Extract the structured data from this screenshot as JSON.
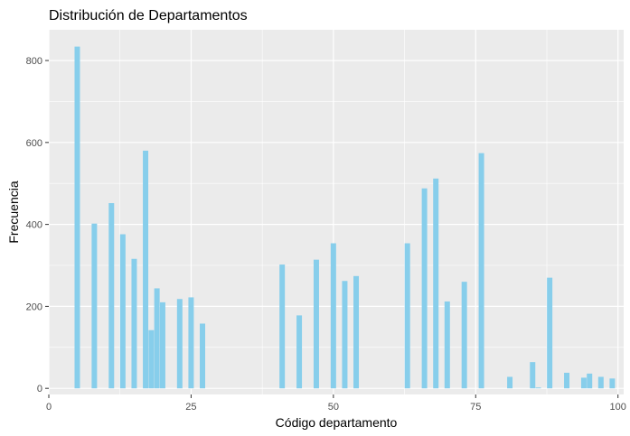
{
  "chart_data": {
    "type": "bar",
    "title": "Distribución de Departamentos",
    "xlabel": "Código departamento",
    "ylabel": "Frecuencia",
    "xlim": [
      0,
      101
    ],
    "ylim": [
      -15,
      875
    ],
    "xticks": [
      0,
      25,
      50,
      75,
      100
    ],
    "yticks": [
      0,
      200,
      400,
      600,
      800
    ],
    "grid": true,
    "legend": "none",
    "bar_color": "#87CEEB",
    "panel_color": "#EBEBEB",
    "points": [
      {
        "x": 5,
        "y": 834
      },
      {
        "x": 8,
        "y": 402
      },
      {
        "x": 11,
        "y": 452
      },
      {
        "x": 13,
        "y": 376
      },
      {
        "x": 15,
        "y": 316
      },
      {
        "x": 17,
        "y": 580
      },
      {
        "x": 18,
        "y": 142
      },
      {
        "x": 19,
        "y": 244
      },
      {
        "x": 20,
        "y": 210
      },
      {
        "x": 23,
        "y": 218
      },
      {
        "x": 25,
        "y": 222
      },
      {
        "x": 27,
        "y": 158
      },
      {
        "x": 41,
        "y": 302
      },
      {
        "x": 44,
        "y": 178
      },
      {
        "x": 47,
        "y": 314
      },
      {
        "x": 50,
        "y": 354
      },
      {
        "x": 52,
        "y": 262
      },
      {
        "x": 54,
        "y": 274
      },
      {
        "x": 63,
        "y": 354
      },
      {
        "x": 66,
        "y": 488
      },
      {
        "x": 68,
        "y": 512
      },
      {
        "x": 70,
        "y": 212
      },
      {
        "x": 73,
        "y": 260
      },
      {
        "x": 76,
        "y": 574
      },
      {
        "x": 81,
        "y": 28
      },
      {
        "x": 85,
        "y": 64
      },
      {
        "x": 86,
        "y": 2
      },
      {
        "x": 88,
        "y": 270
      },
      {
        "x": 91,
        "y": 38
      },
      {
        "x": 94,
        "y": 26
      },
      {
        "x": 95,
        "y": 36
      },
      {
        "x": 97,
        "y": 28
      },
      {
        "x": 99,
        "y": 24
      }
    ]
  }
}
